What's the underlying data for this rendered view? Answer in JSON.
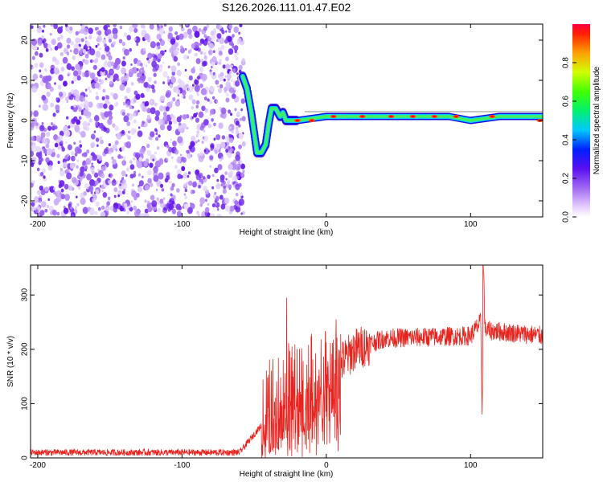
{
  "title": "S126.2026.111.01.47.E02",
  "chart_data": [
    {
      "type": "heatmap",
      "name": "spectrogram",
      "xlabel": "Height of straight line (km)",
      "ylabel": "Frequency (Hz)",
      "xlim": [
        -205,
        150
      ],
      "ylim": [
        -24,
        24
      ],
      "xticks": [
        -200,
        -100,
        0,
        100
      ],
      "yticks": [
        -20,
        -10,
        0,
        10,
        20
      ],
      "colorbar": {
        "label": "Normalized spectral amplitude",
        "range": [
          0,
          1
        ],
        "ticks": [
          0.0,
          0.2,
          0.4,
          0.6,
          0.8
        ]
      },
      "noise_region_x": [
        -205,
        -57
      ],
      "signal_trace": [
        {
          "x": -58,
          "y": 11
        },
        {
          "x": -55,
          "y": 8
        },
        {
          "x": -52,
          "y": 2
        },
        {
          "x": -50,
          "y": -3
        },
        {
          "x": -48,
          "y": -8
        },
        {
          "x": -45,
          "y": -8
        },
        {
          "x": -42,
          "y": -6
        },
        {
          "x": -40,
          "y": -1
        },
        {
          "x": -38,
          "y": 3
        },
        {
          "x": -35,
          "y": 3
        },
        {
          "x": -32,
          "y": 1
        },
        {
          "x": -30,
          "y": 2
        },
        {
          "x": -28,
          "y": 0
        },
        {
          "x": -25,
          "y": 0
        },
        {
          "x": -20,
          "y": 0
        },
        {
          "x": 0,
          "y": 1
        },
        {
          "x": 20,
          "y": 1
        },
        {
          "x": 50,
          "y": 1
        },
        {
          "x": 75,
          "y": 1
        },
        {
          "x": 85,
          "y": 1
        },
        {
          "x": 100,
          "y": 0
        },
        {
          "x": 120,
          "y": 1
        },
        {
          "x": 150,
          "y": 1
        }
      ]
    },
    {
      "type": "line",
      "name": "snr",
      "xlabel": "Height of straight line (km)",
      "ylabel": "SNR (10 * v/v)",
      "xlim": [
        -205,
        150
      ],
      "ylim": [
        0,
        355
      ],
      "xticks": [
        -200,
        -100,
        0,
        100
      ],
      "yticks": [
        0,
        100,
        200,
        300
      ],
      "color": "#e8231e",
      "series": [
        {
          "name": "SNR",
          "x": [
            -205,
            -100,
            -60,
            -45,
            -40,
            -30,
            -20,
            0,
            20,
            40,
            100,
            107,
            108,
            109,
            110,
            150
          ],
          "y": [
            10,
            10,
            10,
            60,
            95,
            120,
            130,
            150,
            200,
            220,
            225,
            250,
            80,
            355,
            235,
            225
          ]
        }
      ],
      "spikes": [
        {
          "x": -27.5,
          "y": 295
        },
        {
          "x": 108,
          "y": 80
        },
        {
          "x": 108.7,
          "y": 355
        }
      ]
    }
  ]
}
